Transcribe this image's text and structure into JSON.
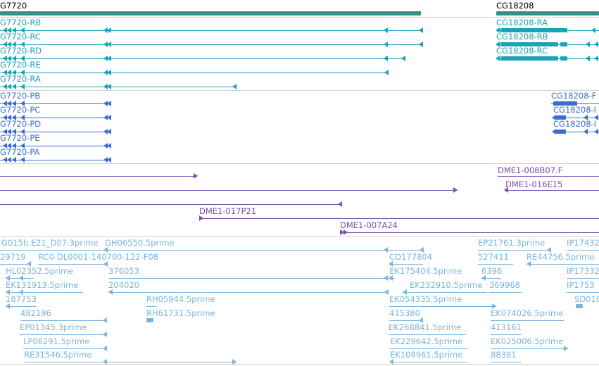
{
  "genes": [
    {
      "label": "G7720"
    },
    {
      "label": "CG18208"
    }
  ],
  "transcripts": [
    {
      "label": "G7720-RB"
    },
    {
      "label": "G7720-RC"
    },
    {
      "label": "G7720-RD"
    },
    {
      "label": "G7720-RE"
    },
    {
      "label": "G7720-RA"
    },
    {
      "label": "CG18208-RA"
    },
    {
      "label": "CG18208-RB"
    },
    {
      "label": "CG18208-RC"
    }
  ],
  "proteins": [
    {
      "label": "G7720-PB"
    },
    {
      "label": "G7720-PC"
    },
    {
      "label": "G7720-PD"
    },
    {
      "label": "G7720-PE"
    },
    {
      "label": "G7720-PA"
    },
    {
      "label": "CG18208-F"
    },
    {
      "label": "CG18208-I"
    },
    {
      "label": "CG18208-I"
    }
  ],
  "clones": [
    {
      "label": "DME1-008B07.F"
    },
    {
      "label": "DME1-016E15"
    },
    {
      "label": "DME1-017P21"
    },
    {
      "label": "DME1-007A24"
    }
  ],
  "ests": [
    {
      "label": "G015b.E21_D07.3prime"
    },
    {
      "label": "GH06550.5prime"
    },
    {
      "label": "EP21761.3prime"
    },
    {
      "label": "IP17432"
    },
    {
      "label": "29719"
    },
    {
      "label": "RC0-DL0001-140700-122-F08"
    },
    {
      "label": "CO177804"
    },
    {
      "label": "527411"
    },
    {
      "label": "RE44756.5prime"
    },
    {
      "label": "HL02352.5prime"
    },
    {
      "label": "376053"
    },
    {
      "label": "EK175404.5prime"
    },
    {
      "label": "6396"
    },
    {
      "label": "IP17332"
    },
    {
      "label": "EK131913.5prime"
    },
    {
      "label": "204020"
    },
    {
      "label": "EK232910.5prime"
    },
    {
      "label": "369968"
    },
    {
      "label": "IP1753"
    },
    {
      "label": "187753"
    },
    {
      "label": "RH05944.5prime"
    },
    {
      "label": "EK054335.5prime"
    },
    {
      "label": "SD010"
    },
    {
      "label": "482196"
    },
    {
      "label": "RH61731.5prime"
    },
    {
      "label": "415380"
    },
    {
      "label": "EK074026.5prime"
    },
    {
      "label": "EP01345.3prime"
    },
    {
      "label": "EK268841.5prime"
    },
    {
      "label": "413161"
    },
    {
      "label": "LP06291.5prime"
    },
    {
      "label": "EK229642.5prime"
    },
    {
      "label": "EK025006.5prime"
    },
    {
      "label": "RE31546.5prime"
    },
    {
      "label": "EK108961.5prime"
    },
    {
      "label": "88381"
    }
  ],
  "colors": {
    "gene": "#3d8c8c",
    "transcript": "#1ba3b8",
    "protein": "#3a6fd1",
    "clone": "#7a4fb0",
    "est": "#7bb4dc",
    "separator": "#cfcfcf"
  }
}
